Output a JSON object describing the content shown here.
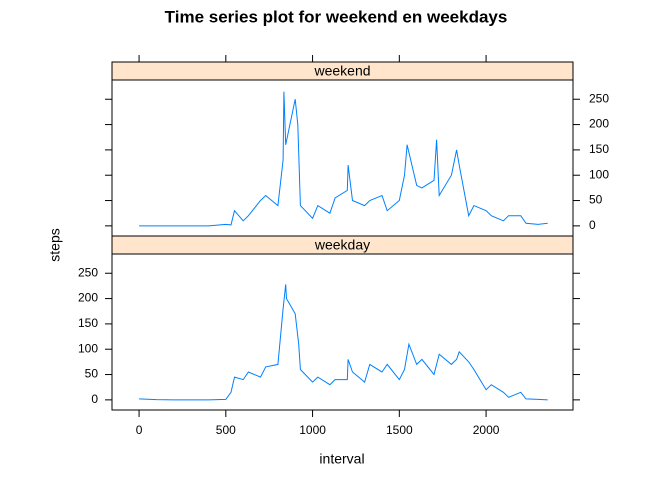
{
  "chart_data": {
    "type": "line",
    "title": "Time series plot for weekend en weekdays",
    "xlabel": "interval",
    "ylabel": "steps",
    "color": "#0080ff",
    "xlim": [
      -156,
      2501
    ],
    "xticks": [
      0,
      500,
      1000,
      1500,
      2000
    ],
    "ylim": [
      -20,
      288
    ],
    "yticks": [
      0,
      50,
      100,
      150,
      200,
      250
    ],
    "panels": [
      {
        "name": "weekend",
        "x": [
          0,
          100,
          200,
          300,
          400,
          500,
          530,
          550,
          600,
          630,
          700,
          730,
          800,
          830,
          835,
          845,
          900,
          915,
          930,
          1000,
          1030,
          1100,
          1130,
          1200,
          1205,
          1230,
          1300,
          1330,
          1400,
          1430,
          1500,
          1530,
          1545,
          1600,
          1630,
          1700,
          1715,
          1730,
          1800,
          1830,
          1845,
          1900,
          1930,
          2000,
          2030,
          2100,
          2130,
          2200,
          2230,
          2300,
          2355
        ],
        "values": [
          0,
          0,
          0,
          0,
          0,
          3,
          2,
          30,
          10,
          20,
          50,
          60,
          40,
          130,
          265,
          160,
          250,
          200,
          40,
          15,
          40,
          25,
          55,
          70,
          120,
          50,
          40,
          50,
          60,
          30,
          50,
          100,
          160,
          80,
          75,
          90,
          170,
          60,
          100,
          150,
          120,
          20,
          40,
          30,
          20,
          10,
          20,
          20,
          5,
          3,
          5
        ]
      },
      {
        "name": "weekday",
        "x": [
          0,
          100,
          200,
          300,
          400,
          500,
          530,
          550,
          600,
          630,
          700,
          730,
          800,
          830,
          845,
          850,
          900,
          920,
          930,
          1000,
          1030,
          1100,
          1130,
          1200,
          1205,
          1230,
          1300,
          1330,
          1400,
          1430,
          1500,
          1530,
          1555,
          1600,
          1630,
          1700,
          1730,
          1800,
          1830,
          1845,
          1900,
          1930,
          2000,
          2030,
          2100,
          2130,
          2200,
          2230,
          2300,
          2355
        ],
        "values": [
          2,
          0.5,
          0,
          0,
          0,
          1,
          15,
          45,
          40,
          55,
          45,
          65,
          70,
          180,
          228,
          200,
          170,
          110,
          60,
          35,
          45,
          30,
          40,
          40,
          80,
          55,
          35,
          70,
          55,
          70,
          40,
          60,
          110,
          70,
          80,
          50,
          90,
          70,
          80,
          95,
          75,
          60,
          20,
          30,
          15,
          5,
          15,
          2,
          1,
          0
        ]
      }
    ]
  }
}
